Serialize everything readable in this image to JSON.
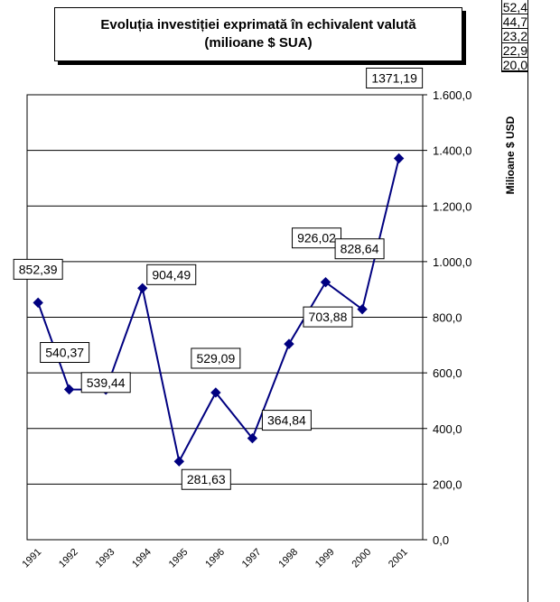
{
  "chart_data": {
    "type": "line",
    "title": "Evoluția investiției exprimată în echivalent valută",
    "subtitle": "(milioane $ SUA)",
    "ylabel": "Milioane $ USD",
    "xlabel": "",
    "ylim": [
      0,
      1600
    ],
    "y_ticks": [
      "0,0",
      "200,0",
      "400,0",
      "600,0",
      "800,0",
      "1.000,0",
      "1.200,0",
      "1.400,0",
      "1.600,0"
    ],
    "y_tick_values": [
      0,
      200,
      400,
      600,
      800,
      1000,
      1200,
      1400,
      1600
    ],
    "y_axis_side": "right",
    "grid": true,
    "legend": "none",
    "categories": [
      "1991",
      "1992",
      "1993",
      "1994",
      "1995",
      "1996",
      "1997",
      "1998",
      "1999",
      "2000",
      "2001"
    ],
    "x_positions": [
      1991,
      1992,
      1993,
      1994,
      1995,
      1996,
      1997,
      1998,
      1999,
      2000,
      2001
    ],
    "point_x": [
      1991,
      1991.85,
      1992.85,
      1993.85,
      1994.85,
      1995.85,
      1996.85,
      1997.85,
      1998.85,
      1999.85,
      2000.85
    ],
    "series": [
      {
        "values": [
          852.39,
          540.37,
          539.44,
          904.49,
          281.63,
          529.09,
          364.84,
          703.88,
          926.02,
          828.64,
          1371.19
        ],
        "labels": [
          "852,39",
          "540,37",
          "539,44",
          "904,49",
          "281,63",
          "529,09",
          "364,84",
          "703,88",
          "926,02",
          "828,64",
          "1371,19"
        ],
        "color": "#000080"
      }
    ]
  },
  "side_table": [
    "52,4",
    "44,7",
    "23,2",
    "22,9",
    "20,0"
  ]
}
